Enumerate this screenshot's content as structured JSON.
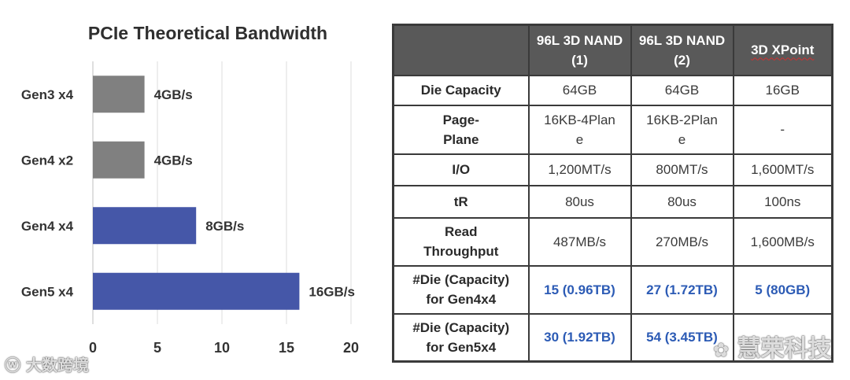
{
  "chart_data": {
    "type": "bar",
    "orientation": "horizontal",
    "title": "PCIe Theoretical Bandwidth",
    "categories": [
      "Gen3 x4",
      "Gen4 x2",
      "Gen4 x4",
      "Gen5 x4"
    ],
    "values": [
      4,
      4,
      8,
      16
    ],
    "value_labels": [
      "4GB/s",
      "4GB/s",
      "8GB/s",
      "16GB/s"
    ],
    "bar_colors": [
      "#808080",
      "#808080",
      "#4557a8",
      "#4557a8"
    ],
    "xlim": [
      0,
      20
    ],
    "xticks": [
      0,
      5,
      10,
      15,
      20
    ],
    "grid": true
  },
  "table": {
    "header": [
      "",
      "96L 3D NAND (1)",
      "96L 3D NAND (2)",
      "3D XPoint"
    ],
    "rows": [
      {
        "label": "Die Capacity",
        "cells": [
          "64GB",
          "64GB",
          "16GB"
        ],
        "highlight": false
      },
      {
        "label": "Page-Plane",
        "cells": [
          "16KB-4Plane",
          "16KB-2Plane",
          "-"
        ],
        "highlight": false
      },
      {
        "label": "I/O",
        "cells": [
          "1,200MT/s",
          "800MT/s",
          "1,600MT/s"
        ],
        "highlight": false
      },
      {
        "label": "tR",
        "cells": [
          "80us",
          "80us",
          "100ns"
        ],
        "highlight": false
      },
      {
        "label": "Read Throughput",
        "cells": [
          "487MB/s",
          "270MB/s",
          "1,600MB/s"
        ],
        "highlight": false
      },
      {
        "label": "#Die (Capacity) for Gen4x4",
        "cells": [
          "15 (0.96TB)",
          "27 (1.72TB)",
          "5 (80GB)"
        ],
        "highlight": true
      },
      {
        "label": "#Die (Capacity) for Gen5x4",
        "cells": [
          "30 (1.92TB)",
          "54 (3.45TB)",
          ""
        ],
        "highlight": true
      }
    ]
  },
  "watermarks": {
    "left": "大数跨境",
    "right": "慧荣科技"
  },
  "colors": {
    "gray_bar": "#808080",
    "blue_bar": "#4557a8",
    "table_header_bg": "#595959",
    "highlight_text": "#2c5bb5"
  }
}
